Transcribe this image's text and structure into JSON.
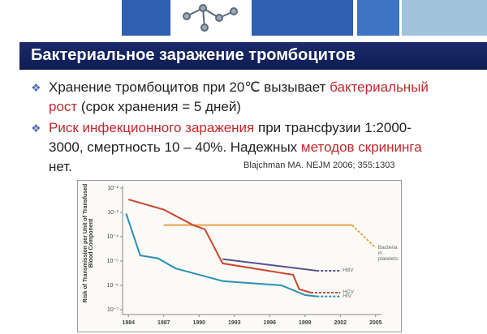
{
  "slide_title": "Бактериальное заражение тромбоцитов",
  "bullets": [
    [
      {
        "text": "Хранение тромбоцитов при 20℃ вызывает "
      },
      {
        "text": "бактериальный рост",
        "color": "#c0282a"
      },
      {
        "text": " (срок хранения = 5 дней)"
      }
    ],
    [
      {
        "text": "Риск инфекционного заражения",
        "color": "#c0282a"
      },
      {
        "text": " при трансфузии 1:2000-3000, смертность 10 – 40%. Надежных "
      },
      {
        "text": "методов скрининга",
        "color": "#c0282a"
      },
      {
        "text": " нет."
      }
    ]
  ],
  "citation": "Blajchman MA. NEJM 2006; 355:1303",
  "chart_data": {
    "type": "line",
    "y_label": "Risk of Transmission per Unit of Transfused Blood Component",
    "log_y": true,
    "xlim": [
      1983.5,
      2005.5
    ],
    "xticks": [
      1984,
      1987,
      1990,
      1993,
      1996,
      1999,
      2002,
      2005
    ],
    "ylim": [
      1e-07,
      0.01
    ],
    "yticks": [
      {
        "value": 1e-07,
        "label": "10⁻⁷"
      },
      {
        "value": 1e-06,
        "label": "10⁻⁶"
      },
      {
        "value": 1e-05,
        "label": "10⁻⁵"
      },
      {
        "value": 0.0001,
        "label": "10⁻⁴"
      },
      {
        "value": 0.001,
        "label": "10⁻³"
      },
      {
        "value": 0.01,
        "label": "10⁻²"
      }
    ],
    "series": [
      {
        "name": "Bacteria in platelets",
        "color": "#e6a24a",
        "x": [
          1987,
          2003,
          2005
        ],
        "values": [
          0.0003,
          0.0003,
          3.5e-05
        ],
        "dash_from": 1
      },
      {
        "name": "HBV",
        "color": "#5b4f92",
        "x": [
          1992,
          2000,
          2002
        ],
        "values": [
          1.2e-05,
          4e-06,
          4e-06
        ],
        "dash_from": 1
      },
      {
        "name": "HCV",
        "color": "#c9472c",
        "x": [
          1984,
          1987,
          1989.5,
          1990.5,
          1992,
          1998,
          1998.5,
          1999.5,
          2002
        ],
        "values": [
          0.0034,
          0.0013,
          0.0003,
          0.0002,
          8e-06,
          2.7e-06,
          7e-07,
          5e-07,
          5e-07
        ],
        "dash_from": 7
      },
      {
        "name": "HIV",
        "color": "#2b90b2",
        "x": [
          1983.8,
          1985,
          1986.5,
          1988,
          1992,
          1997,
          1999,
          2000,
          2002
        ],
        "values": [
          0.0009,
          1.7e-05,
          1.3e-05,
          5e-06,
          1.5e-06,
          1e-06,
          4e-07,
          3.5e-07,
          3.5e-07
        ],
        "dash_from": 7
      }
    ]
  }
}
